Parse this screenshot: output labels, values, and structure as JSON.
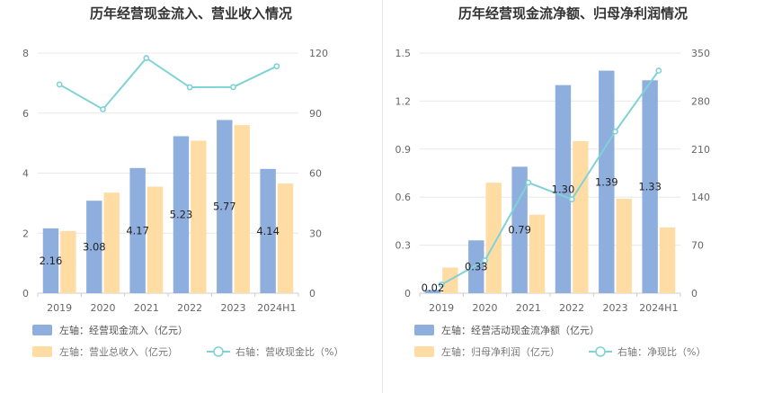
{
  "colors": {
    "bar_primary": "#8eaedd",
    "bar_secondary": "#fedca4",
    "line": "#7fd2d6",
    "grid": "#e8e8e8",
    "axis": "#cccccc"
  },
  "chart_data": [
    {
      "type": "bar",
      "title": "历年经营现金流入、营业收入情况",
      "categories": [
        "2019",
        "2020",
        "2021",
        "2022",
        "2023",
        "2024H1"
      ],
      "series": [
        {
          "name": "左轴：经营现金流入（亿元）",
          "axis": "left",
          "kind": "bar",
          "values": [
            2.16,
            3.08,
            4.17,
            5.23,
            5.77,
            4.14
          ],
          "labels": [
            "2.16",
            "3.08",
            "4.17",
            "5.23",
            "5.77",
            "4.14"
          ]
        },
        {
          "name": "左轴：营业总收入（亿元）",
          "axis": "left",
          "kind": "bar",
          "values": [
            2.07,
            3.35,
            3.55,
            5.08,
            5.6,
            3.65
          ]
        },
        {
          "name": "右轴：营收现金比（%）",
          "axis": "right",
          "kind": "line",
          "values": [
            104.3,
            91.9,
            117.5,
            102.9,
            103.0,
            113.4
          ]
        }
      ],
      "y_left": {
        "range": [
          0,
          8
        ],
        "ticks": [
          "0",
          "2",
          "4",
          "6",
          "8"
        ]
      },
      "y_right": {
        "range": [
          0,
          120
        ],
        "ticks": [
          "0",
          "30",
          "60",
          "90",
          "120"
        ]
      },
      "legend": [
        {
          "label": "左轴：经营现金流入（亿元）",
          "kind": "bar",
          "series": 0
        },
        {
          "label": "左轴：营业总收入（亿元）",
          "kind": "bar",
          "series": 1
        },
        {
          "label": "右轴：营收现金比（%）",
          "kind": "line",
          "series": 2
        }
      ],
      "legend_position": "bottom-left",
      "grid": true
    },
    {
      "type": "bar",
      "title": "历年经营现金流净额、归母净利润情况",
      "categories": [
        "2019",
        "2020",
        "2021",
        "2022",
        "2023",
        "2024H1"
      ],
      "series": [
        {
          "name": "左轴：经营活动现金流净额（亿元）",
          "axis": "left",
          "kind": "bar",
          "values": [
            0.02,
            0.33,
            0.79,
            1.3,
            1.39,
            1.33
          ],
          "labels": [
            "0.02",
            "0.33",
            "0.79",
            "1.30",
            "1.39",
            "1.33"
          ]
        },
        {
          "name": "左轴：归母净利润（亿元）",
          "axis": "left",
          "kind": "bar",
          "values": [
            0.16,
            0.69,
            0.49,
            0.95,
            0.59,
            0.41
          ]
        },
        {
          "name": "右轴：净现比（%）",
          "axis": "right",
          "kind": "line",
          "values": [
            12.5,
            47.8,
            161.2,
            136.8,
            235.6,
            324.4
          ]
        }
      ],
      "y_left": {
        "range": [
          0,
          1.5
        ],
        "ticks": [
          "0",
          "0.3",
          "0.6",
          "0.9",
          "1.2",
          "1.5"
        ]
      },
      "y_right": {
        "range": [
          0,
          350
        ],
        "ticks": [
          "0",
          "70",
          "140",
          "210",
          "280",
          "350"
        ]
      },
      "legend": [
        {
          "label": "左轴：经营活动现金流净额（亿元）",
          "kind": "bar",
          "series": 0
        },
        {
          "label": "左轴：归母净利润（亿元）",
          "kind": "bar",
          "series": 1
        },
        {
          "label": "右轴：净现比（%）",
          "kind": "line",
          "series": 2
        }
      ],
      "legend_position": "bottom-left",
      "grid": true
    }
  ]
}
